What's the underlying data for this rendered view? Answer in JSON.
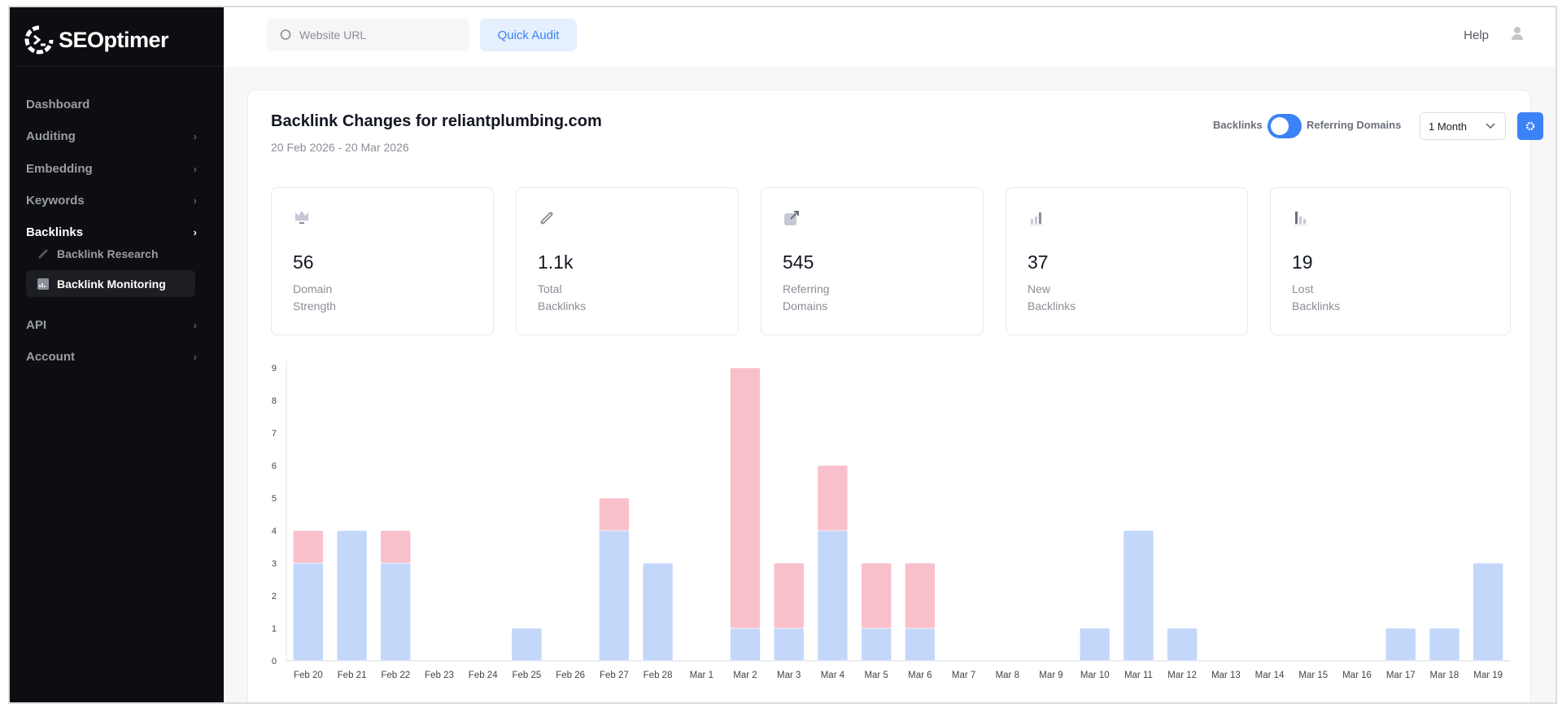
{
  "brand": {
    "name": "SEOptimer"
  },
  "sidebar": {
    "items": [
      {
        "label": "Dashboard",
        "chevron": false
      },
      {
        "label": "Auditing",
        "chevron": true
      },
      {
        "label": "Embedding",
        "chevron": true
      },
      {
        "label": "Keywords",
        "chevron": true
      },
      {
        "label": "Backlinks",
        "chevron": true,
        "active": true
      },
      {
        "label": "API",
        "chevron": true
      },
      {
        "label": "Account",
        "chevron": true
      }
    ],
    "subitems": [
      {
        "label": "Backlink Research",
        "icon": "link-icon"
      },
      {
        "label": "Backlink Monitoring",
        "icon": "chart-icon",
        "active": true
      }
    ]
  },
  "topbar": {
    "search_placeholder": "Website URL",
    "quick_audit": "Quick Audit",
    "help": "Help"
  },
  "main": {
    "title": "Backlink Changes for reliantplumbing.com",
    "date_range": "20 Feb 2026 - 20 Mar 2026",
    "toggle": {
      "left": "Backlinks",
      "right": "Referring Domains",
      "state": "Backlinks"
    },
    "period": "1 Month",
    "stats": [
      {
        "value": "56",
        "label": "Domain Strength",
        "icon": "crown-icon"
      },
      {
        "value": "1.1k",
        "label": "Total Backlinks",
        "icon": "link-icon"
      },
      {
        "value": "545",
        "label": "Referring Domains",
        "icon": "external-link-icon"
      },
      {
        "value": "37",
        "label": "New Backlinks",
        "icon": "bar-up-icon"
      },
      {
        "value": "19",
        "label": "Lost Backlinks",
        "icon": "bar-down-icon"
      }
    ]
  },
  "colors": {
    "accent": "#3b82f6",
    "new": "#c3d7fb",
    "lost": "#f9c0cb",
    "sidebar": "#0d0e12"
  },
  "chart_data": {
    "type": "bar",
    "stacked": true,
    "categories": [
      "Feb 20",
      "Feb 21",
      "Feb 22",
      "Feb 23",
      "Feb 24",
      "Feb 25",
      "Feb 26",
      "Feb 27",
      "Feb 28",
      "Mar 1",
      "Mar 2",
      "Mar 3",
      "Mar 4",
      "Mar 5",
      "Mar 6",
      "Mar 7",
      "Mar 8",
      "Mar 9",
      "Mar 10",
      "Mar 11",
      "Mar 12",
      "Mar 13",
      "Mar 14",
      "Mar 15",
      "Mar 16",
      "Mar 17",
      "Mar 18",
      "Mar 19"
    ],
    "series": [
      {
        "color": "#c3d7fb",
        "values": [
          3,
          4,
          3,
          0,
          0,
          1,
          0,
          4,
          3,
          0,
          1,
          1,
          4,
          1,
          1,
          0,
          0,
          0,
          1,
          4,
          1,
          0,
          0,
          0,
          0,
          1,
          1,
          3
        ]
      },
      {
        "color": "#f9c0cb",
        "values": [
          1,
          0,
          1,
          0,
          0,
          0,
          0,
          1,
          0,
          0,
          8,
          2,
          2,
          2,
          2,
          0,
          0,
          0,
          0,
          0,
          0,
          0,
          0,
          0,
          0,
          0,
          0,
          0
        ]
      }
    ],
    "ylim": [
      0,
      9
    ],
    "yticks": [
      0,
      1,
      2,
      3,
      4,
      5,
      6,
      7,
      8,
      9
    ],
    "grid": false
  }
}
